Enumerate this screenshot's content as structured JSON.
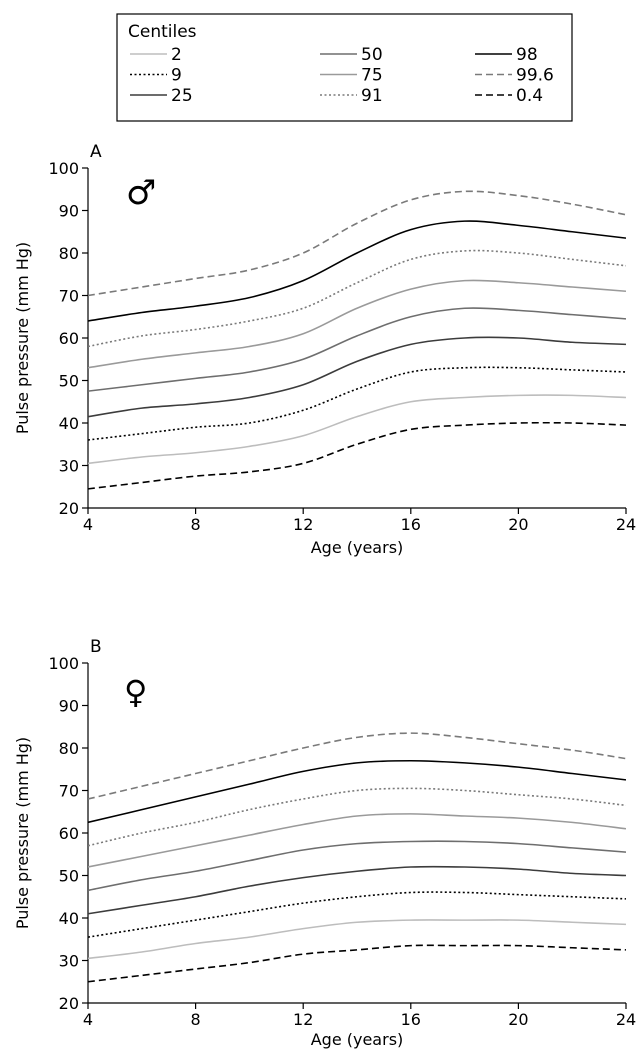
{
  "legend": {
    "title": "Centiles"
  },
  "centile_styles": {
    "99.6": {
      "color": "#7a7a7a",
      "dash": "dashed"
    },
    "98": {
      "color": "#000000",
      "dash": "solid"
    },
    "91": {
      "color": "#7a7a7a",
      "dash": "dotted"
    },
    "75": {
      "color": "#9a9a9a",
      "dash": "solid"
    },
    "50": {
      "color": "#6e6e6e",
      "dash": "solid"
    },
    "25": {
      "color": "#3c3c3c",
      "dash": "solid"
    },
    "9": {
      "color": "#000000",
      "dash": "dotted"
    },
    "2": {
      "color": "#bdbdbd",
      "dash": "solid"
    },
    "0.4": {
      "color": "#000000",
      "dash": "dashed"
    }
  },
  "chart_data": [
    {
      "type": "line",
      "panel_label": "A",
      "symbol": "♂",
      "xlabel": "Age (years)",
      "ylabel": "Pulse pressure (mm Hg)",
      "xlim": [
        4,
        24
      ],
      "ylim": [
        20,
        100
      ],
      "xticks": [
        4,
        8,
        12,
        16,
        20,
        24
      ],
      "yticks": [
        20,
        30,
        40,
        50,
        60,
        70,
        80,
        90,
        100
      ],
      "grid": false,
      "legend_position": "top",
      "x": [
        4,
        6,
        8,
        10,
        12,
        14,
        16,
        18,
        20,
        22,
        24
      ],
      "series": [
        {
          "name": "99.6",
          "values": [
            70,
            72,
            74,
            76,
            80,
            87,
            92.5,
            94.5,
            93.5,
            91.5,
            89
          ]
        },
        {
          "name": "98",
          "values": [
            64,
            66,
            67.5,
            69.5,
            73.5,
            80,
            85.5,
            87.5,
            86.5,
            85,
            83.5
          ]
        },
        {
          "name": "91",
          "values": [
            58,
            60.5,
            62,
            64,
            67,
            73,
            78.5,
            80.5,
            80,
            78.5,
            77
          ]
        },
        {
          "name": "75",
          "values": [
            53,
            55,
            56.5,
            58,
            61,
            67,
            71.5,
            73.5,
            73,
            72,
            71
          ]
        },
        {
          "name": "50",
          "values": [
            47.5,
            49,
            50.5,
            52,
            55,
            60.5,
            65,
            67,
            66.5,
            65.5,
            64.5
          ]
        },
        {
          "name": "25",
          "values": [
            41.5,
            43.5,
            44.5,
            46,
            49,
            54.5,
            58.5,
            60,
            60,
            59,
            58.5
          ]
        },
        {
          "name": "9",
          "values": [
            36,
            37.5,
            39,
            40,
            43,
            48,
            52,
            53,
            53,
            52.5,
            52
          ]
        },
        {
          "name": "2",
          "values": [
            30.5,
            32,
            33,
            34.5,
            37,
            41.5,
            45,
            46,
            46.5,
            46.5,
            46
          ]
        },
        {
          "name": "0.4",
          "values": [
            24.5,
            26,
            27.5,
            28.5,
            30.5,
            35,
            38.5,
            39.5,
            40,
            40,
            39.5
          ]
        }
      ]
    },
    {
      "type": "line",
      "panel_label": "B",
      "symbol": "♀",
      "xlabel": "Age (years)",
      "ylabel": "Pulse pressure (mm Hg)",
      "xlim": [
        4,
        24
      ],
      "ylim": [
        20,
        100
      ],
      "xticks": [
        4,
        8,
        12,
        16,
        20,
        24
      ],
      "yticks": [
        20,
        30,
        40,
        50,
        60,
        70,
        80,
        90,
        100
      ],
      "grid": false,
      "x": [
        4,
        6,
        8,
        10,
        12,
        14,
        16,
        18,
        20,
        22,
        24
      ],
      "series": [
        {
          "name": "99.6",
          "values": [
            68,
            71,
            74,
            77,
            80,
            82.5,
            83.5,
            82.5,
            81,
            79.5,
            77.5
          ]
        },
        {
          "name": "98",
          "values": [
            62.5,
            65.5,
            68.5,
            71.5,
            74.5,
            76.5,
            77,
            76.5,
            75.5,
            74,
            72.5
          ]
        },
        {
          "name": "91",
          "values": [
            57,
            60,
            62.5,
            65.5,
            68,
            70,
            70.5,
            70,
            69,
            68,
            66.5
          ]
        },
        {
          "name": "75",
          "values": [
            52,
            54.5,
            57,
            59.5,
            62,
            64,
            64.5,
            64,
            63.5,
            62.5,
            61
          ]
        },
        {
          "name": "50",
          "values": [
            46.5,
            49,
            51,
            53.5,
            56,
            57.5,
            58,
            58,
            57.5,
            56.5,
            55.5
          ]
        },
        {
          "name": "25",
          "values": [
            41,
            43,
            45,
            47.5,
            49.5,
            51,
            52,
            52,
            51.5,
            50.5,
            50
          ]
        },
        {
          "name": "9",
          "values": [
            35.5,
            37.5,
            39.5,
            41.5,
            43.5,
            45,
            46,
            46,
            45.5,
            45,
            44.5
          ]
        },
        {
          "name": "2",
          "values": [
            30.5,
            32,
            34,
            35.5,
            37.5,
            39,
            39.5,
            39.5,
            39.5,
            39,
            38.5
          ]
        },
        {
          "name": "0.4",
          "values": [
            25,
            26.5,
            28,
            29.5,
            31.5,
            32.5,
            33.5,
            33.5,
            33.5,
            33,
            32.5
          ]
        }
      ]
    }
  ]
}
